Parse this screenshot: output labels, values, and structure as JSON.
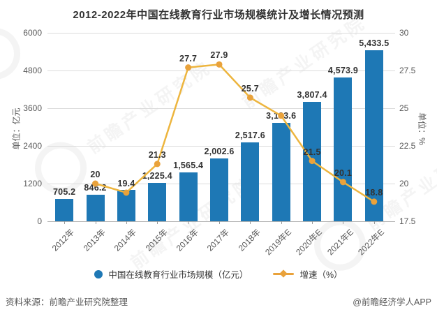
{
  "title": "2012-2022年中国在线教育行业市场规模统计及增长情况预测",
  "left_axis": {
    "label": "单位：亿元",
    "ticks": [
      "0",
      "1200",
      "2400",
      "3600",
      "4800",
      "6000"
    ]
  },
  "right_axis": {
    "label": "单位：%",
    "ticks": [
      "17.5",
      "20",
      "22.5",
      "25",
      "27.5",
      "30"
    ]
  },
  "legend": {
    "items": [
      {
        "label": "中国在线教育行业市场规模（亿元）",
        "color": "#1e78b5",
        "marker": "circle"
      },
      {
        "label": "增速（%）",
        "color": "#e9a23b",
        "marker": "line-diamond"
      }
    ]
  },
  "footer": {
    "source": "资料来源：前瞻产业研究院整理",
    "credit": "@前瞻经济学人APP"
  },
  "watermark": {
    "text": "前瞻产业研究院"
  },
  "colors": {
    "bar": "#1e78b5",
    "line": "#edb53e",
    "marker": "#e9a23b",
    "grid": "#dcdcdc",
    "axis_text": "#595959",
    "label_text": "#333333"
  },
  "chart_data": {
    "type": "bar",
    "title": "2012-2022年中国在线教育行业市场规模统计及增长情况预测",
    "categories": [
      "2012年",
      "2013年",
      "2014年",
      "2015年",
      "2016年",
      "2017年",
      "2018年",
      "2019年E",
      "2020年E",
      "2021年E",
      "2022年E"
    ],
    "series": [
      {
        "name": "中国在线教育行业市场规模（亿元）",
        "type": "bar",
        "axis": "left",
        "color": "#1e78b5",
        "values": [
          705.2,
          846.2,
          1010.4,
          1225.4,
          1565.4,
          2002.6,
          2517.6,
          3133.6,
          3807.4,
          4573.9,
          5433.5
        ],
        "visible_labels": [
          "705.2",
          "846.2",
          "",
          "1,225.4",
          "1,565.4",
          "2,002.6",
          "2,517.6",
          "3,133.6",
          "3,807.4",
          "4,573.9",
          "5,433.5"
        ]
      },
      {
        "name": "增速（%）",
        "type": "line",
        "axis": "right",
        "color": "#edb53e",
        "values": [
          null,
          20,
          19.4,
          21.3,
          27.7,
          27.9,
          25.7,
          24.5,
          21.5,
          20.1,
          18.8
        ],
        "visible_labels": [
          "",
          "20",
          "19.4",
          "21.3",
          "27.7",
          "27.9",
          "25.7",
          "",
          "21.5",
          "20.1",
          "18.8"
        ]
      }
    ],
    "xlabel": "",
    "ylabel_left": "单位：亿元",
    "ylabel_right": "单位：%",
    "left_ylim": [
      0,
      6000
    ],
    "right_ylim": [
      17.5,
      30
    ],
    "left_ticks": [
      0,
      1200,
      2400,
      3600,
      4800,
      6000
    ],
    "right_ticks": [
      17.5,
      20,
      22.5,
      25,
      27.5,
      30
    ],
    "grid": true,
    "legend_position": "bottom"
  }
}
